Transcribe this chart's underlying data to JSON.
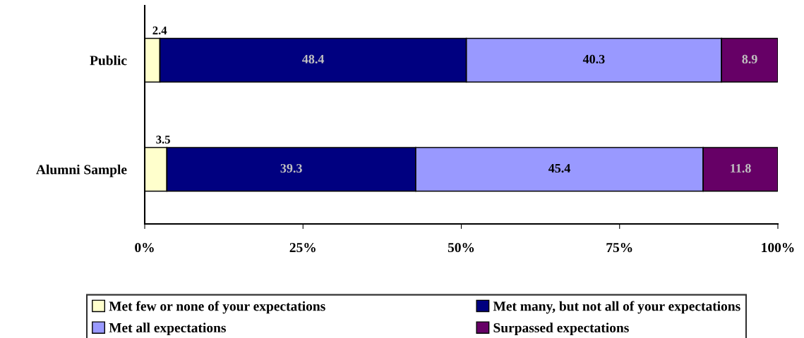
{
  "chart_data": {
    "type": "bar",
    "orientation": "horizontal",
    "stacked": true,
    "categories": [
      "Public",
      "Alumni Sample"
    ],
    "series": [
      {
        "name": "Met few or none of your expectations",
        "color": "#ffffcc",
        "values": [
          2.4,
          3.5
        ]
      },
      {
        "name": "Met many, but not all of your expectations",
        "color": "#000080",
        "values": [
          48.4,
          39.3
        ]
      },
      {
        "name": "Met all expectations",
        "color": "#9999ff",
        "values": [
          40.3,
          45.4
        ]
      },
      {
        "name": "Surpassed expectations",
        "color": "#660066",
        "values": [
          8.9,
          11.8
        ]
      }
    ],
    "xlim": [
      0,
      100
    ],
    "xticks": [
      {
        "value": 0,
        "label": "0%"
      },
      {
        "value": 25,
        "label": "25%"
      },
      {
        "value": 50,
        "label": "50%"
      },
      {
        "value": 75,
        "label": "75%"
      },
      {
        "value": 100,
        "label": "100%"
      }
    ],
    "data_labels": true,
    "grid": false,
    "legend": "bottom"
  }
}
